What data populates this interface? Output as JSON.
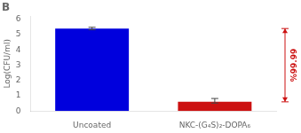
{
  "chart_data": {
    "type": "bar",
    "title": "B",
    "categories": [
      "Uncoated",
      "NKC-(G₄S)₂-DOPA₆"
    ],
    "values": [
      5.4,
      0.6
    ],
    "colors": [
      "#0000dd",
      "#cc1111"
    ],
    "errors_top": [
      0.08,
      0.22
    ],
    "errors_bottom": [
      0.08,
      0.08
    ],
    "ylabel": "Log(CFU/ml)",
    "ylim": [
      0,
      6.2
    ],
    "yticks": [
      0,
      1,
      2,
      3,
      4,
      5,
      6
    ],
    "grid": false,
    "annotation": {
      "text": "%99.99",
      "from": 5.4,
      "to": 0.6,
      "color": "#cc1111"
    }
  }
}
